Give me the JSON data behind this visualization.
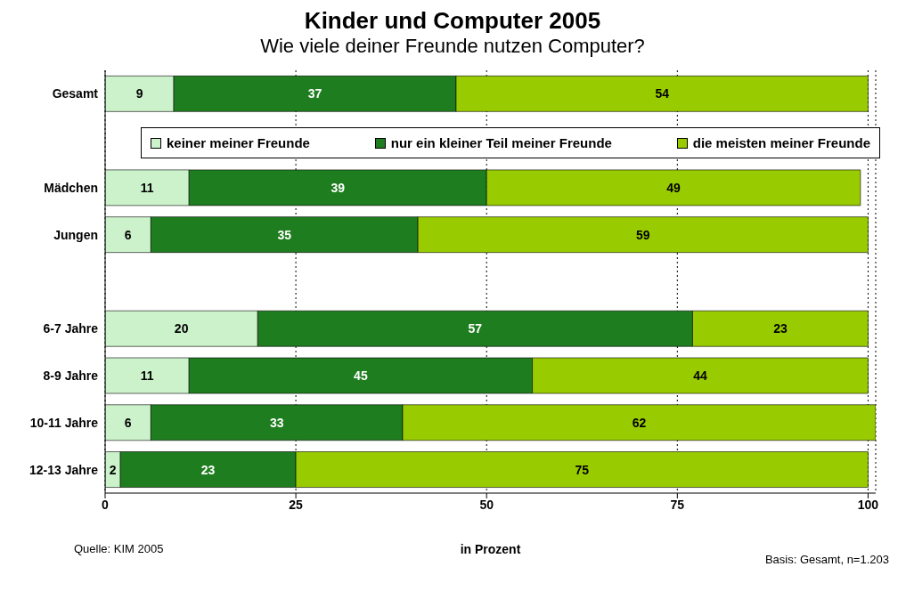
{
  "chart_data": {
    "type": "bar",
    "orientation": "horizontal",
    "stacked": true,
    "title": "Kinder und Computer 2005",
    "subtitle": "Wie viele deiner Freunde nutzen Computer?",
    "xlabel": "in Prozent",
    "categories": [
      "Gesamt",
      null,
      "Mädchen",
      "Jungen",
      null,
      "6-7 Jahre",
      "8-9 Jahre",
      "10-11 Jahre",
      "12-13 Jahre"
    ],
    "series": [
      {
        "name": "keiner meiner Freunde",
        "color": "#ccf2cc",
        "values": [
          9,
          null,
          11,
          6,
          null,
          20,
          11,
          6,
          2
        ]
      },
      {
        "name": "nur ein kleiner Teil meiner Freunde",
        "color": "#1e7d1e",
        "values": [
          37,
          null,
          39,
          35,
          null,
          57,
          45,
          33,
          23
        ]
      },
      {
        "name": "die meisten meiner Freunde",
        "color": "#99cc00",
        "values": [
          54,
          null,
          49,
          59,
          null,
          23,
          44,
          62,
          75
        ]
      }
    ],
    "xlim": [
      0,
      101
    ],
    "xticks": [
      0,
      25,
      50,
      75,
      100
    ],
    "grid": "x",
    "legend": "top",
    "data_labels": true,
    "annotations": [
      "Quelle: KIM 2005",
      "Basis: Gesamt, n=1.203"
    ]
  }
}
